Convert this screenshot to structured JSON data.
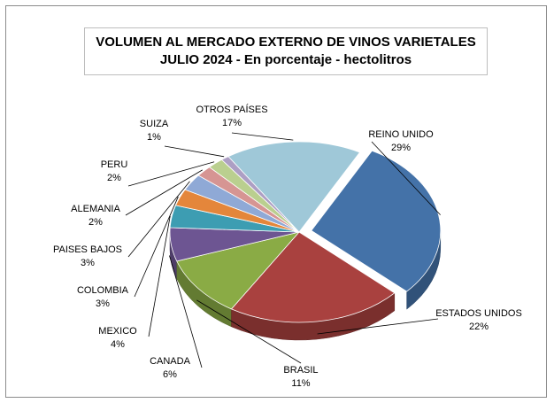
{
  "chart_data": {
    "type": "pie",
    "title": "VOLUMEN AL MERCADO EXTERNO DE VINOS VARIETALES",
    "subtitle": "JULIO 2024 - En porcentaje - hectolitros",
    "slices": [
      {
        "label": "REINO UNIDO",
        "value": 29,
        "value_label": "29%",
        "color": "#4472a8"
      },
      {
        "label": "ESTADOS UNIDOS",
        "value": 22,
        "value_label": "22%",
        "color": "#a9413f"
      },
      {
        "label": "BRASIL",
        "value": 11,
        "value_label": "11%",
        "color": "#8aab45"
      },
      {
        "label": "CANADA",
        "value": 6,
        "value_label": "6%",
        "color": "#6d5592"
      },
      {
        "label": "MEXICO",
        "value": 4,
        "value_label": "4%",
        "color": "#3d9db2"
      },
      {
        "label": "COLOMBIA",
        "value": 3,
        "value_label": "3%",
        "color": "#e4863b"
      },
      {
        "label": "PAISES BAJOS",
        "value": 3,
        "value_label": "3%",
        "color": "#8fa9d6"
      },
      {
        "label": "ALEMANIA",
        "value": 2,
        "value_label": "2%",
        "color": "#d69593"
      },
      {
        "label": "PERU",
        "value": 2,
        "value_label": "2%",
        "color": "#bacf8f"
      },
      {
        "label": "SUIZA",
        "value": 1,
        "value_label": "1%",
        "color": "#ad9fc4"
      },
      {
        "label": "OTROS PAÍSES",
        "value": 17,
        "value_label": "17%",
        "color": "#9fc8d8"
      }
    ]
  }
}
